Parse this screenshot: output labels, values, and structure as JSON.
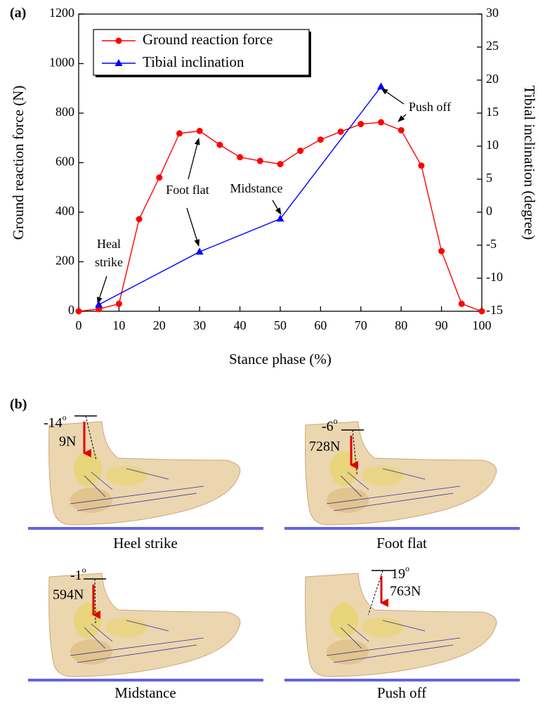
{
  "panel_a_label": "(a)",
  "chart_data": {
    "type": "line",
    "xlabel": "Stance phase (%)",
    "ylabel": "Ground reaction force (N)",
    "y2label": "Tibial inclination (degree)",
    "xlim": [
      0,
      100
    ],
    "xticks": [
      0,
      10,
      20,
      30,
      40,
      50,
      60,
      70,
      80,
      90,
      100
    ],
    "ylim": [
      0,
      1200
    ],
    "yticks": [
      0,
      200,
      400,
      600,
      800,
      1000,
      1200
    ],
    "y2lim": [
      -15,
      30
    ],
    "y2ticks": [
      -15,
      -10,
      -5,
      0,
      5,
      10,
      15,
      20,
      25,
      30
    ],
    "legend": "upper left",
    "series": [
      {
        "name": "Ground reaction force",
        "color": "#ff0000",
        "marker": "circle",
        "x": [
          0,
          5,
          10,
          15,
          20,
          25,
          30,
          35,
          40,
          45,
          50,
          55,
          60,
          65,
          70,
          75,
          80,
          85,
          90,
          95,
          100
        ],
        "values": [
          0,
          9,
          30,
          372,
          540,
          718,
          728,
          672,
          622,
          607,
          594,
          648,
          693,
          725,
          756,
          763,
          731,
          588,
          243,
          30,
          0
        ]
      },
      {
        "name": "Tibial inclination",
        "color": "#0000ff",
        "marker": "triangle",
        "axis": "y2",
        "x": [
          5,
          30,
          50,
          75
        ],
        "values": [
          -14,
          -6,
          -1,
          19
        ]
      }
    ],
    "annotations": [
      {
        "text": [
          "Heal",
          "strike"
        ]
      },
      {
        "text": [
          "Foot flat"
        ]
      },
      {
        "text": [
          "Midstance"
        ]
      },
      {
        "text": [
          "Push off"
        ]
      }
    ]
  },
  "panel_b": {
    "label": "(b)",
    "degree_symbol": "o",
    "panels": [
      {
        "caption": "Heel strike",
        "angle": "-14",
        "force": "9N"
      },
      {
        "caption": "Foot flat",
        "angle": "-6",
        "force": "728N"
      },
      {
        "caption": "Midstance",
        "angle": "-1",
        "force": "594N"
      },
      {
        "caption": "Push off",
        "angle": "19",
        "force": "763N"
      }
    ]
  }
}
